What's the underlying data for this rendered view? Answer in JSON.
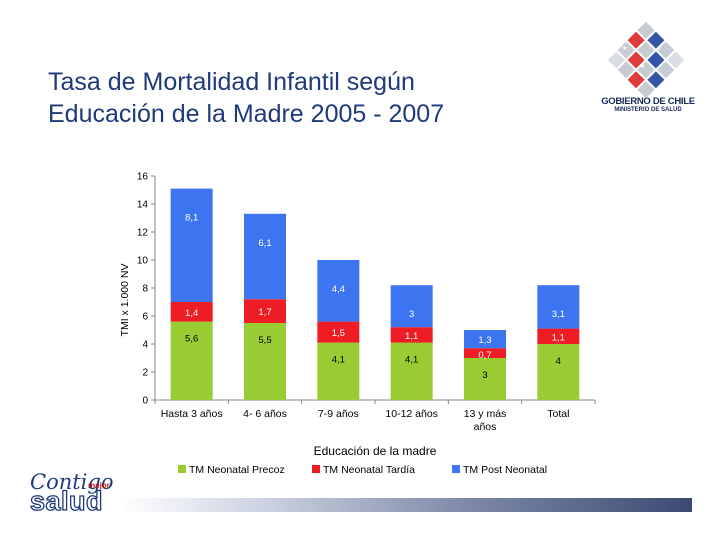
{
  "title_line1": "Tasa de Mortalidad Infantil según",
  "title_line2": "Educación de la Madre 2005 - 2007",
  "logo": {
    "line1": "GOBIERNO DE CHILE",
    "line2": "MINISTERIO DE SALUD"
  },
  "footer_logo": {
    "word1": "Contigo",
    "word2": "mejor",
    "word3": "salud"
  },
  "colors": {
    "precoz": "#99cc33",
    "tardia": "#ee1c24",
    "post": "#3d74f0",
    "title": "#1f3a7a"
  },
  "chart_data": {
    "type": "bar",
    "stacked": true,
    "title": "",
    "xlabel": "Educación de la madre",
    "ylabel": "TMI x 1.000 NV",
    "ylim": [
      0,
      16
    ],
    "yticks": [
      "0",
      "2",
      "4",
      "6",
      "8",
      "10",
      "12",
      "14",
      "16"
    ],
    "categories": [
      [
        "Hasta 3 años"
      ],
      [
        "4- 6 años"
      ],
      [
        "7-9 años"
      ],
      [
        "10-12 años"
      ],
      [
        "13 y más",
        "años"
      ],
      [
        "Total"
      ]
    ],
    "series": [
      {
        "name": "TM Neonatal Precoz",
        "values": [
          5.6,
          5.5,
          4.1,
          4.1,
          3,
          4
        ],
        "labels": [
          "5,6",
          "5,5",
          "4,1",
          "4,1",
          "3",
          "4"
        ]
      },
      {
        "name": "TM Neonatal Tardía",
        "values": [
          1.4,
          1.7,
          1.5,
          1.1,
          0.7,
          1.1
        ],
        "labels": [
          "1,4",
          "1,7",
          "1,5",
          "1,1",
          "0,7",
          "1,1"
        ]
      },
      {
        "name": "TM Post Neonatal",
        "values": [
          8.1,
          6.1,
          4.4,
          3,
          1.3,
          3.1
        ],
        "labels": [
          "8,1",
          "6,1",
          "4,4",
          "3",
          "1,3",
          "3,1"
        ]
      }
    ],
    "legend": [
      "TM Neonatal Precoz",
      "TM Neonatal Tardía",
      "TM Post Neonatal"
    ],
    "legend_position": "bottom",
    "grid": false
  }
}
